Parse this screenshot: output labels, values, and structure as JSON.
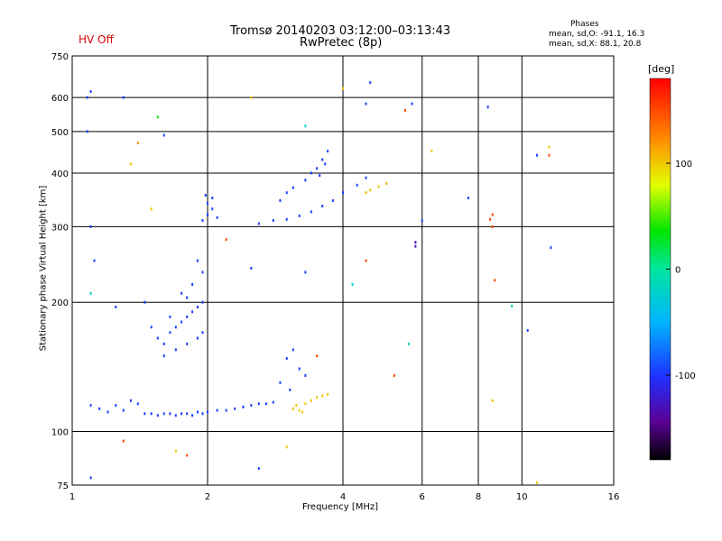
{
  "header": {
    "title_line1": "Tromsø 20140203 03:12:00–03:13:43",
    "title_line2": "RwPretec (8p)",
    "status": "HV Off",
    "phases_heading": "Phases",
    "phases_o": "mean, sd,O: -91.1, 16.3",
    "phases_x": "mean, sd,X:  88.1, 20.8"
  },
  "colorbar": {
    "unit": "[deg]",
    "range": [
      -180,
      180
    ],
    "ticks": [
      {
        "value": 100,
        "label": "100"
      },
      {
        "value": 0,
        "label": "0"
      },
      {
        "value": -100,
        "label": "-100"
      }
    ]
  },
  "colors": {
    "low_phase": "#1e32ff",
    "high_phase": "#e1ff00",
    "status": "#d40000"
  },
  "chart_data": {
    "type": "scatter",
    "xlabel": "Frequency [MHz]",
    "ylabel": "Stationary phase Virtual Height [km]",
    "xscale": "log",
    "yscale": "log",
    "xlim": [
      1,
      16
    ],
    "ylim": [
      75,
      750
    ],
    "grid": true,
    "x_ticks": [
      {
        "value": 1,
        "label": "1"
      },
      {
        "value": 2,
        "label": "2"
      },
      {
        "value": 4,
        "label": "4"
      },
      {
        "value": 6,
        "label": "6"
      },
      {
        "value": 8,
        "label": "8"
      },
      {
        "value": 10,
        "label": "10"
      },
      {
        "value": 16,
        "label": "16"
      }
    ],
    "y_ticks": [
      {
        "value": 75,
        "label": "75"
      },
      {
        "value": 100,
        "label": "100"
      },
      {
        "value": 200,
        "label": "200"
      },
      {
        "value": 300,
        "label": "300"
      },
      {
        "value": 400,
        "label": "400"
      },
      {
        "value": 500,
        "label": "500"
      },
      {
        "value": 600,
        "label": "600"
      },
      {
        "value": 750,
        "label": "750"
      }
    ],
    "points": [
      {
        "x": 1.45,
        "y": 110,
        "phase": -95
      },
      {
        "x": 1.5,
        "y": 110,
        "phase": -95
      },
      {
        "x": 1.55,
        "y": 109,
        "phase": -95
      },
      {
        "x": 1.6,
        "y": 110,
        "phase": -92
      },
      {
        "x": 1.65,
        "y": 110,
        "phase": -95
      },
      {
        "x": 1.7,
        "y": 109,
        "phase": -95
      },
      {
        "x": 1.75,
        "y": 110,
        "phase": -95
      },
      {
        "x": 1.8,
        "y": 110,
        "phase": -93
      },
      {
        "x": 1.85,
        "y": 109,
        "phase": -95
      },
      {
        "x": 1.9,
        "y": 111,
        "phase": -95
      },
      {
        "x": 1.95,
        "y": 110,
        "phase": -95
      },
      {
        "x": 2.0,
        "y": 111,
        "phase": -95
      },
      {
        "x": 2.1,
        "y": 112,
        "phase": -95
      },
      {
        "x": 2.2,
        "y": 112,
        "phase": -92
      },
      {
        "x": 2.3,
        "y": 113,
        "phase": -95
      },
      {
        "x": 2.4,
        "y": 114,
        "phase": -95
      },
      {
        "x": 2.5,
        "y": 115,
        "phase": -95
      },
      {
        "x": 2.6,
        "y": 116,
        "phase": -95
      },
      {
        "x": 2.7,
        "y": 116,
        "phase": -95
      },
      {
        "x": 2.8,
        "y": 117,
        "phase": -95
      },
      {
        "x": 1.15,
        "y": 113,
        "phase": -95
      },
      {
        "x": 1.2,
        "y": 111,
        "phase": -95
      },
      {
        "x": 1.25,
        "y": 115,
        "phase": -95
      },
      {
        "x": 1.3,
        "y": 112,
        "phase": -90
      },
      {
        "x": 1.35,
        "y": 118,
        "phase": -95
      },
      {
        "x": 1.4,
        "y": 116,
        "phase": -95
      },
      {
        "x": 1.1,
        "y": 115,
        "phase": -95
      },
      {
        "x": 1.55,
        "y": 165,
        "phase": -95
      },
      {
        "x": 1.6,
        "y": 160,
        "phase": -95
      },
      {
        "x": 1.65,
        "y": 170,
        "phase": -95
      },
      {
        "x": 1.7,
        "y": 175,
        "phase": -95
      },
      {
        "x": 1.75,
        "y": 180,
        "phase": -95
      },
      {
        "x": 1.8,
        "y": 185,
        "phase": -95
      },
      {
        "x": 1.85,
        "y": 190,
        "phase": -95
      },
      {
        "x": 1.9,
        "y": 195,
        "phase": -95
      },
      {
        "x": 1.95,
        "y": 200,
        "phase": -95
      },
      {
        "x": 1.6,
        "y": 150,
        "phase": -95
      },
      {
        "x": 1.7,
        "y": 155,
        "phase": -95
      },
      {
        "x": 1.8,
        "y": 160,
        "phase": -95
      },
      {
        "x": 1.9,
        "y": 165,
        "phase": -95
      },
      {
        "x": 1.95,
        "y": 170,
        "phase": -95
      },
      {
        "x": 1.75,
        "y": 210,
        "phase": -95
      },
      {
        "x": 1.85,
        "y": 220,
        "phase": -95
      },
      {
        "x": 1.95,
        "y": 235,
        "phase": -95
      },
      {
        "x": 1.9,
        "y": 250,
        "phase": -95
      },
      {
        "x": 1.8,
        "y": 205,
        "phase": -95
      },
      {
        "x": 1.65,
        "y": 185,
        "phase": -95
      },
      {
        "x": 1.5,
        "y": 175,
        "phase": -95
      },
      {
        "x": 1.95,
        "y": 310,
        "phase": -95
      },
      {
        "x": 2.0,
        "y": 320,
        "phase": -95
      },
      {
        "x": 2.05,
        "y": 330,
        "phase": -95
      },
      {
        "x": 2.1,
        "y": 315,
        "phase": -95
      },
      {
        "x": 2.0,
        "y": 340,
        "phase": -95
      },
      {
        "x": 2.05,
        "y": 350,
        "phase": -95
      },
      {
        "x": 1.98,
        "y": 355,
        "phase": -95
      },
      {
        "x": 2.6,
        "y": 305,
        "phase": -95
      },
      {
        "x": 2.8,
        "y": 310,
        "phase": -95
      },
      {
        "x": 3.0,
        "y": 312,
        "phase": -95
      },
      {
        "x": 3.2,
        "y": 318,
        "phase": -95
      },
      {
        "x": 3.4,
        "y": 325,
        "phase": -95
      },
      {
        "x": 3.6,
        "y": 335,
        "phase": -95
      },
      {
        "x": 3.8,
        "y": 345,
        "phase": -95
      },
      {
        "x": 4.0,
        "y": 360,
        "phase": -95
      },
      {
        "x": 4.3,
        "y": 375,
        "phase": -95
      },
      {
        "x": 4.5,
        "y": 390,
        "phase": -95
      },
      {
        "x": 2.9,
        "y": 345,
        "phase": -95
      },
      {
        "x": 3.0,
        "y": 360,
        "phase": -95
      },
      {
        "x": 3.1,
        "y": 370,
        "phase": -95
      },
      {
        "x": 3.3,
        "y": 385,
        "phase": -95
      },
      {
        "x": 3.4,
        "y": 400,
        "phase": -95
      },
      {
        "x": 3.5,
        "y": 410,
        "phase": -95
      },
      {
        "x": 3.6,
        "y": 430,
        "phase": -95
      },
      {
        "x": 3.7,
        "y": 450,
        "phase": -95
      },
      {
        "x": 3.55,
        "y": 395,
        "phase": -95
      },
      {
        "x": 3.65,
        "y": 420,
        "phase": -95
      },
      {
        "x": 3.0,
        "y": 148,
        "phase": -95
      },
      {
        "x": 3.1,
        "y": 155,
        "phase": -95
      },
      {
        "x": 3.2,
        "y": 140,
        "phase": -95
      },
      {
        "x": 3.3,
        "y": 135,
        "phase": -95
      },
      {
        "x": 2.9,
        "y": 130,
        "phase": -95
      },
      {
        "x": 3.05,
        "y": 125,
        "phase": -95
      },
      {
        "x": 3.1,
        "y": 113,
        "phase": 100
      },
      {
        "x": 3.15,
        "y": 115,
        "phase": 100
      },
      {
        "x": 3.2,
        "y": 112,
        "phase": 95
      },
      {
        "x": 3.3,
        "y": 116,
        "phase": 100
      },
      {
        "x": 3.4,
        "y": 118,
        "phase": 100
      },
      {
        "x": 3.5,
        "y": 120,
        "phase": 100
      },
      {
        "x": 3.6,
        "y": 121,
        "phase": 100
      },
      {
        "x": 3.7,
        "y": 122,
        "phase": 100
      },
      {
        "x": 3.25,
        "y": 111,
        "phase": 100
      },
      {
        "x": 4.5,
        "y": 360,
        "phase": 105
      },
      {
        "x": 4.6,
        "y": 365,
        "phase": 105
      },
      {
        "x": 4.8,
        "y": 372,
        "phase": 100
      },
      {
        "x": 5.0,
        "y": 378,
        "phase": 105
      },
      {
        "x": 8.6,
        "y": 300,
        "phase": 150
      },
      {
        "x": 8.6,
        "y": 320,
        "phase": 150
      },
      {
        "x": 8.5,
        "y": 312,
        "phase": 150
      },
      {
        "x": 5.8,
        "y": 270,
        "phase": -130
      },
      {
        "x": 5.8,
        "y": 276,
        "phase": -130
      },
      {
        "x": 1.1,
        "y": 300,
        "phase": -95
      },
      {
        "x": 1.12,
        "y": 250,
        "phase": -95
      },
      {
        "x": 1.1,
        "y": 210,
        "phase": -20
      },
      {
        "x": 1.08,
        "y": 600,
        "phase": -95
      },
      {
        "x": 1.1,
        "y": 620,
        "phase": -95
      },
      {
        "x": 1.3,
        "y": 600,
        "phase": -95
      },
      {
        "x": 1.6,
        "y": 490,
        "phase": -95
      },
      {
        "x": 1.55,
        "y": 540,
        "phase": 30
      },
      {
        "x": 1.4,
        "y": 470,
        "phase": 120
      },
      {
        "x": 1.08,
        "y": 500,
        "phase": -95
      },
      {
        "x": 4.6,
        "y": 650,
        "phase": -95
      },
      {
        "x": 4.5,
        "y": 580,
        "phase": -95
      },
      {
        "x": 5.5,
        "y": 560,
        "phase": 150
      },
      {
        "x": 5.7,
        "y": 580,
        "phase": -95
      },
      {
        "x": 6.0,
        "y": 310,
        "phase": -95
      },
      {
        "x": 6.3,
        "y": 450,
        "phase": 100
      },
      {
        "x": 7.6,
        "y": 350,
        "phase": -95
      },
      {
        "x": 8.4,
        "y": 570,
        "phase": -95
      },
      {
        "x": 8.7,
        "y": 225,
        "phase": 150
      },
      {
        "x": 8.6,
        "y": 118,
        "phase": 100
      },
      {
        "x": 9.5,
        "y": 196,
        "phase": -20
      },
      {
        "x": 10.3,
        "y": 172,
        "phase": -95
      },
      {
        "x": 10.8,
        "y": 440,
        "phase": -95
      },
      {
        "x": 11.5,
        "y": 460,
        "phase": 100
      },
      {
        "x": 11.5,
        "y": 440,
        "phase": 150
      },
      {
        "x": 11.6,
        "y": 268,
        "phase": -95
      },
      {
        "x": 2.5,
        "y": 240,
        "phase": -95
      },
      {
        "x": 3.3,
        "y": 235,
        "phase": -95
      },
      {
        "x": 4.5,
        "y": 250,
        "phase": 150
      },
      {
        "x": 5.6,
        "y": 160,
        "phase": -20
      },
      {
        "x": 5.2,
        "y": 135,
        "phase": 150
      },
      {
        "x": 2.6,
        "y": 82,
        "phase": -95
      },
      {
        "x": 1.1,
        "y": 78,
        "phase": -95
      },
      {
        "x": 1.7,
        "y": 90,
        "phase": 100
      },
      {
        "x": 1.3,
        "y": 95,
        "phase": 150
      },
      {
        "x": 1.8,
        "y": 88,
        "phase": 150
      },
      {
        "x": 3.0,
        "y": 92,
        "phase": 100
      },
      {
        "x": 3.5,
        "y": 150,
        "phase": 150
      },
      {
        "x": 1.5,
        "y": 330,
        "phase": 100
      },
      {
        "x": 2.2,
        "y": 280,
        "phase": 150
      },
      {
        "x": 1.25,
        "y": 195,
        "phase": -95
      },
      {
        "x": 1.45,
        "y": 200,
        "phase": -95
      },
      {
        "x": 4.2,
        "y": 220,
        "phase": -20
      },
      {
        "x": 10.8,
        "y": 76,
        "phase": 100
      },
      {
        "x": 4.0,
        "y": 630,
        "phase": 100
      },
      {
        "x": 1.35,
        "y": 420,
        "phase": 100
      },
      {
        "x": 3.3,
        "y": 515,
        "phase": -20
      },
      {
        "x": 2.5,
        "y": 600,
        "phase": 100
      }
    ]
  }
}
